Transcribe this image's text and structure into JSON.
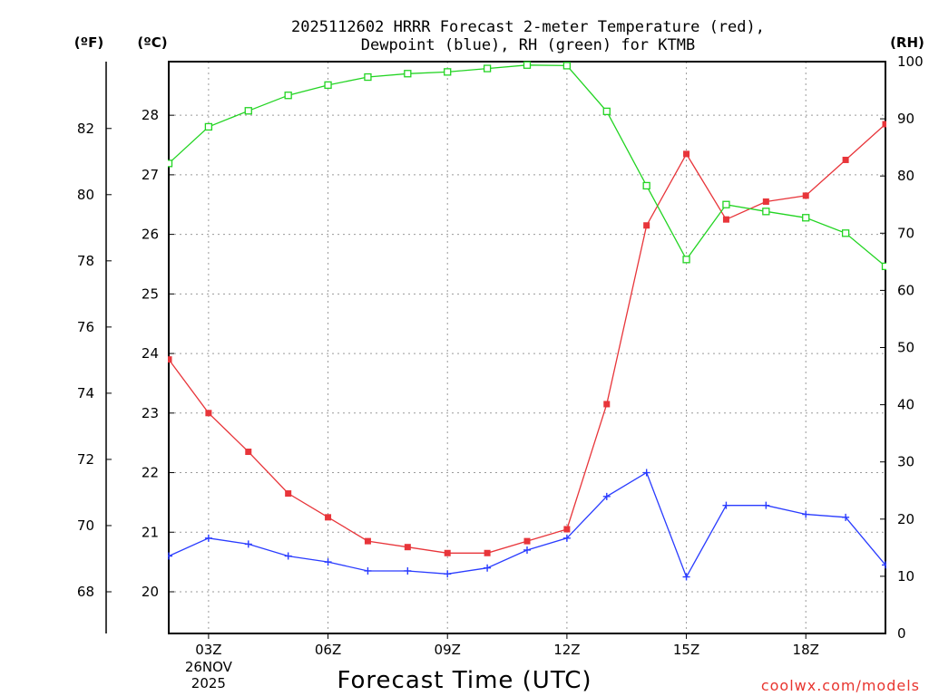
{
  "chart_data": {
    "type": "line",
    "title_lines": [
      "2025112602 HRRR Forecast 2-meter Temperature (red),",
      "Dewpoint (blue), RH (green) for KTMB"
    ],
    "xlabel": "Forecast Time (UTC)",
    "credit": "coolwx.com/models",
    "x_hours": [
      2,
      3,
      4,
      5,
      6,
      7,
      8,
      9,
      10,
      11,
      12,
      13,
      14,
      15,
      16,
      17,
      18,
      19,
      20
    ],
    "xlim": [
      2,
      20
    ],
    "x_ticks": [
      {
        "hour": 3,
        "label": "03Z",
        "extra": [
          "26NOV",
          "2025"
        ]
      },
      {
        "hour": 6,
        "label": "06Z",
        "extra": []
      },
      {
        "hour": 9,
        "label": "09Z",
        "extra": []
      },
      {
        "hour": 12,
        "label": "12Z",
        "extra": []
      },
      {
        "hour": 15,
        "label": "15Z",
        "extra": []
      },
      {
        "hour": 18,
        "label": "18Z",
        "extra": []
      }
    ],
    "axis_left_c": {
      "unit": "(ºC)",
      "range": [
        19.3,
        28.9
      ],
      "ticks": [
        20,
        21,
        22,
        23,
        24,
        25,
        26,
        27,
        28
      ]
    },
    "axis_left_f": {
      "unit": "(ºF)",
      "ticks": [
        68,
        70,
        72,
        74,
        76,
        78,
        80,
        82
      ]
    },
    "axis_right_rh": {
      "unit": "(RH)",
      "range": [
        0,
        100
      ],
      "ticks": [
        0,
        10,
        20,
        30,
        40,
        50,
        60,
        70,
        80,
        90,
        100
      ]
    },
    "series": [
      {
        "name": "2-meter Temperature",
        "axis": "c",
        "color": "#e8353a",
        "marker": "filled-square",
        "values": [
          23.9,
          23.0,
          22.35,
          21.65,
          21.25,
          20.85,
          20.75,
          20.65,
          20.65,
          20.85,
          21.05,
          23.15,
          26.15,
          27.35,
          26.25,
          26.55,
          26.65,
          27.25,
          27.85
        ]
      },
      {
        "name": "Dewpoint",
        "axis": "c",
        "color": "#2a3cff",
        "marker": "plus",
        "values": [
          20.6,
          20.9,
          20.8,
          20.6,
          20.5,
          20.35,
          20.35,
          20.3,
          20.4,
          20.7,
          20.9,
          21.6,
          22.0,
          20.25,
          21.45,
          21.45,
          21.3,
          21.25,
          20.45
        ]
      },
      {
        "name": "RH",
        "axis": "rh",
        "color": "#22d422",
        "marker": "open-square",
        "values": [
          82.2,
          88.6,
          91.4,
          94.1,
          95.9,
          97.3,
          97.9,
          98.2,
          98.8,
          99.4,
          99.3,
          91.3,
          78.3,
          65.4,
          75.0,
          73.8,
          72.7,
          70.0,
          64.2
        ]
      }
    ]
  }
}
